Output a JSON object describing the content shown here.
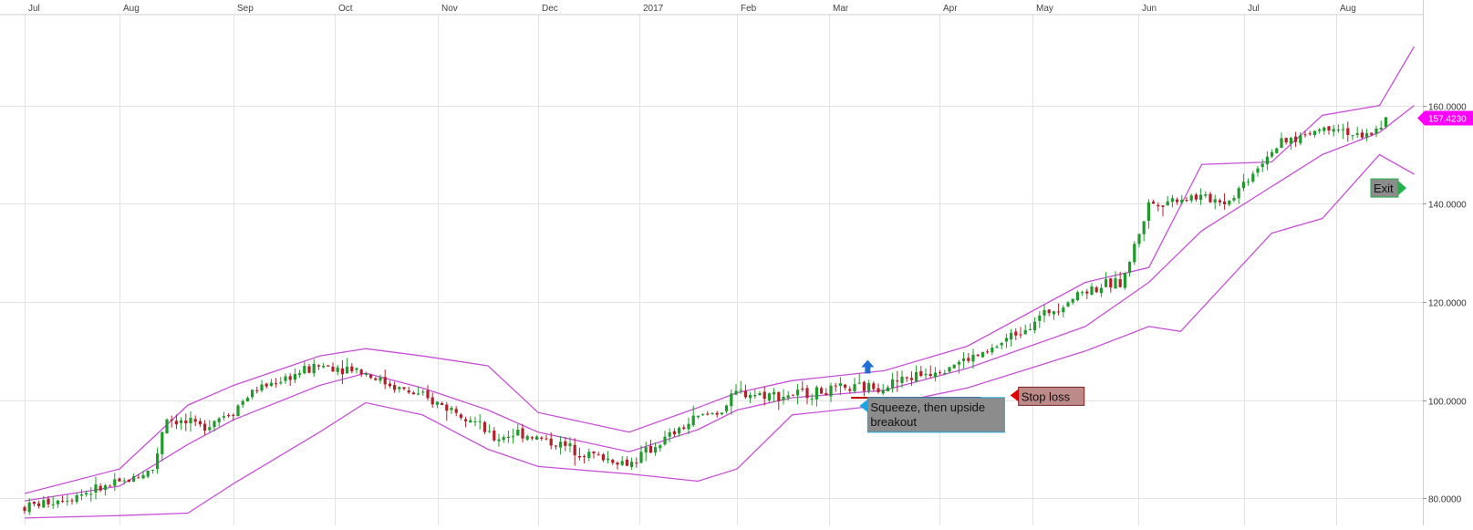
{
  "chart_data": {
    "type": "candlestick",
    "title": "",
    "xlabel": "",
    "ylabel": "",
    "ylim": [
      74.5,
      178.5
    ],
    "x_tick_labels": [
      "Jul",
      "Aug",
      "Sep",
      "Oct",
      "Nov",
      "Dec",
      "2017",
      "Feb",
      "Mar",
      "Apr",
      "May",
      "Jun",
      "Jul",
      "Aug"
    ],
    "y_ticks": [
      80,
      100,
      120,
      140,
      160
    ],
    "y_tick_labels": [
      "80.0000",
      "100.0000",
      "120.0000",
      "140.0000",
      "160.0000"
    ],
    "grid": true,
    "last_price": 157.423,
    "last_price_label": "157.4230",
    "colors": {
      "up": "#1f9a2b",
      "down": "#b3202a",
      "band": "#c84fd8",
      "last_price": "#ff00ff",
      "stop_line": "#c00000",
      "arrow": "#1f6fd6"
    },
    "price_path": [
      [
        "Jul",
        0.0,
        78.2
      ],
      [
        "Jul",
        0.5,
        80.5
      ],
      [
        "Aug",
        0.0,
        83.0
      ],
      [
        "Aug",
        0.3,
        86.0
      ],
      [
        "Aug",
        0.4,
        96.5
      ],
      [
        "Aug",
        0.7,
        94.5
      ],
      [
        "Aug",
        1.0,
        98.0
      ],
      [
        "Sep",
        0.2,
        102.0
      ],
      [
        "Sep",
        0.5,
        104.5
      ],
      [
        "Sep",
        0.85,
        107.0
      ],
      [
        "Oct",
        0.2,
        106.5
      ],
      [
        "Oct",
        0.5,
        103.5
      ],
      [
        "Oct",
        0.85,
        100.5
      ],
      [
        "Nov",
        0.3,
        97.0
      ],
      [
        "Nov",
        0.55,
        92.0
      ],
      [
        "Nov",
        0.8,
        93.5
      ],
      [
        "Dec",
        0.2,
        91.0
      ],
      [
        "Dec",
        0.6,
        88.5
      ],
      [
        "Dec",
        0.9,
        87.0
      ],
      [
        "2017",
        0.15,
        90.5
      ],
      [
        "2017",
        0.6,
        96.5
      ],
      [
        "2017",
        0.85,
        98.0
      ],
      [
        "Feb",
        0.0,
        101.5
      ],
      [
        "Feb",
        0.5,
        101.0
      ],
      [
        "Mar",
        0.0,
        101.8
      ],
      [
        "Mar",
        0.5,
        103.0
      ],
      [
        "Apr",
        0.0,
        106.5
      ],
      [
        "Apr",
        0.5,
        109.5
      ],
      [
        "May",
        0.0,
        116.0
      ],
      [
        "May",
        0.5,
        122.5
      ],
      [
        "May",
        0.85,
        124.0
      ],
      [
        "Jun",
        0.1,
        140.0
      ],
      [
        "Jun",
        0.5,
        141.5
      ],
      [
        "Jun",
        0.85,
        140.5
      ],
      [
        "Jul",
        0.3,
        151.0
      ],
      [
        "Jul",
        0.7,
        154.5
      ],
      [
        "Aug",
        0.0,
        156.0
      ],
      [
        "Aug",
        0.3,
        153.0
      ],
      [
        "Aug",
        0.6,
        157.5
      ]
    ],
    "band_upper": [
      [
        "Jul",
        0.0,
        81.0
      ],
      [
        "Aug",
        0.0,
        86.0
      ],
      [
        "Aug",
        0.6,
        99.0
      ],
      [
        "Sep",
        0.0,
        103.0
      ],
      [
        "Sep",
        0.85,
        109.0
      ],
      [
        "Oct",
        0.3,
        110.5
      ],
      [
        "Oct",
        0.85,
        109.0
      ],
      [
        "Nov",
        0.5,
        107.0
      ],
      [
        "Dec",
        0.0,
        97.5
      ],
      [
        "Dec",
        0.9,
        93.5
      ],
      [
        "2017",
        0.6,
        98.5
      ],
      [
        "Feb",
        0.0,
        101.5
      ],
      [
        "Feb",
        0.6,
        104.0
      ],
      [
        "Mar",
        0.5,
        106.0
      ],
      [
        "Apr",
        0.3,
        111.0
      ],
      [
        "May",
        0.5,
        124.0
      ],
      [
        "Jun",
        0.1,
        127.0
      ],
      [
        "Jun",
        0.6,
        148.0
      ],
      [
        "Jul",
        0.3,
        148.5
      ],
      [
        "Jul",
        0.85,
        158.0
      ],
      [
        "Aug",
        0.5,
        160.0
      ],
      [
        "Aug",
        0.9,
        172.0
      ]
    ],
    "band_middle": [
      [
        "Jul",
        0.0,
        79.5
      ],
      [
        "Aug",
        0.0,
        82.5
      ],
      [
        "Aug",
        0.6,
        91.0
      ],
      [
        "Sep",
        0.0,
        96.0
      ],
      [
        "Sep",
        0.85,
        103.0
      ],
      [
        "Oct",
        0.3,
        105.5
      ],
      [
        "Oct",
        0.85,
        102.5
      ],
      [
        "Nov",
        0.5,
        98.0
      ],
      [
        "Dec",
        0.0,
        93.5
      ],
      [
        "Dec",
        0.9,
        89.5
      ],
      [
        "2017",
        0.6,
        94.0
      ],
      [
        "Feb",
        0.0,
        98.0
      ],
      [
        "Feb",
        0.6,
        100.5
      ],
      [
        "Mar",
        0.5,
        102.0
      ],
      [
        "Apr",
        0.3,
        106.5
      ],
      [
        "May",
        0.5,
        115.0
      ],
      [
        "Jun",
        0.1,
        124.0
      ],
      [
        "Jun",
        0.6,
        134.5
      ],
      [
        "Jul",
        0.3,
        143.5
      ],
      [
        "Jul",
        0.85,
        150.0
      ],
      [
        "Aug",
        0.5,
        154.5
      ],
      [
        "Aug",
        0.9,
        160.0
      ]
    ],
    "band_lower": [
      [
        "Jul",
        0.0,
        76.0
      ],
      [
        "Aug",
        0.0,
        76.5
      ],
      [
        "Aug",
        0.6,
        77.0
      ],
      [
        "Sep",
        0.0,
        83.0
      ],
      [
        "Sep",
        0.85,
        93.5
      ],
      [
        "Oct",
        0.3,
        99.5
      ],
      [
        "Oct",
        0.85,
        97.0
      ],
      [
        "Nov",
        0.5,
        90.0
      ],
      [
        "Dec",
        0.0,
        86.5
      ],
      [
        "Dec",
        0.9,
        85.0
      ],
      [
        "2017",
        0.6,
        83.5
      ],
      [
        "Feb",
        0.0,
        86.0
      ],
      [
        "Feb",
        0.6,
        97.0
      ],
      [
        "Mar",
        0.5,
        99.0
      ],
      [
        "Apr",
        0.3,
        102.5
      ],
      [
        "May",
        0.5,
        110.0
      ],
      [
        "Jun",
        0.1,
        115.0
      ],
      [
        "Jun",
        0.4,
        114.0
      ],
      [
        "Jul",
        0.3,
        134.0
      ],
      [
        "Jul",
        0.85,
        137.0
      ],
      [
        "Aug",
        0.5,
        150.0
      ],
      [
        "Aug",
        0.9,
        146.0
      ]
    ],
    "stop_level": 100.5,
    "stop_line_span": [
      [
        "Mar",
        0.2
      ],
      [
        "Apr",
        0.45
      ]
    ],
    "annotations": [
      {
        "id": "squeeze",
        "text": [
          "Squeeze, then upside",
          "breakout"
        ],
        "anchor": [
          "Mar",
          0.35
        ],
        "value": 97.0
      },
      {
        "id": "stop",
        "text": [
          "Stop loss"
        ],
        "anchor": [
          "Apr",
          0.85
        ],
        "value": 100.8
      },
      {
        "id": "exit",
        "text": [
          "Exit"
        ],
        "anchor": [
          "Aug",
          0.4
        ],
        "value": 143.2
      }
    ],
    "breakout_arrow": [
      "Mar",
      0.35,
      104.5
    ]
  }
}
